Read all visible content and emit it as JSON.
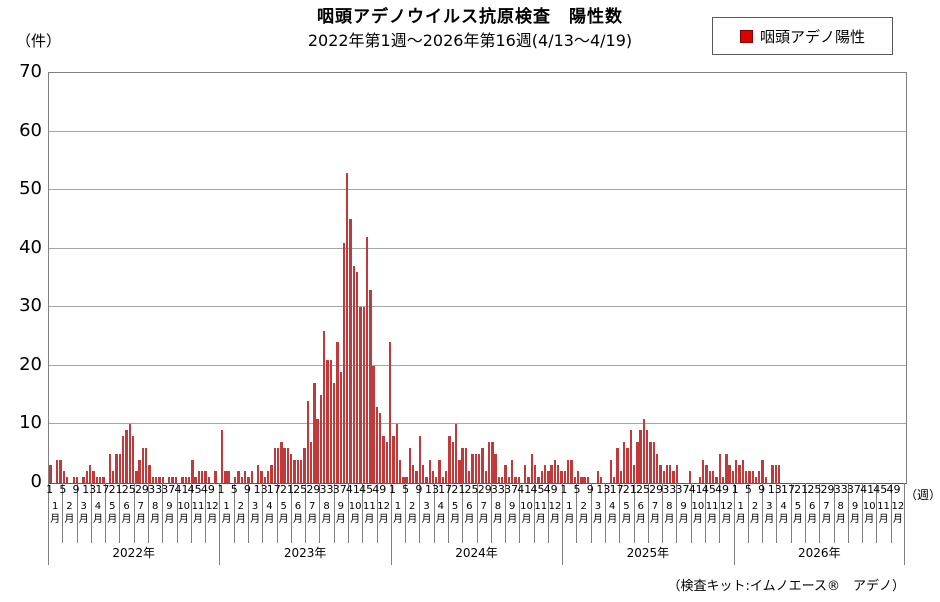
{
  "title": "咽頭アデノウイルス抗原検査　陽性数",
  "subtitle": "2022年第1週～2026年第16週(4/13～4/19)",
  "y_axis_unit_label": "（件）",
  "x_axis_unit_label": "（週）",
  "legend": {
    "label": "咽頭アデノ陽性",
    "marker_color": "#dd0000"
  },
  "footer_note": "（検査キット:イムノエース®　アデノ）",
  "colors": {
    "bar": "#c0393b",
    "gridline": "#a6a6a6",
    "frame": "#808080",
    "baseline": "#595959",
    "background": "#ffffff"
  },
  "chart_data": {
    "type": "bar",
    "title": "咽頭アデノウイルス抗原検査　陽性数",
    "subtitle": "2022年第1週～2026年第16週(4/13～4/19)",
    "ylabel": "件",
    "xlabel": "週",
    "ylim": [
      0,
      70
    ],
    "y_ticks": [
      0,
      10,
      20,
      30,
      40,
      50,
      60,
      70
    ],
    "grid": true,
    "legend_position": "top-right",
    "series_name": "咽頭アデノ陽性",
    "weeks_per_year_axis": 52,
    "week_ticks": [
      1,
      5,
      9,
      13,
      17,
      21,
      25,
      29,
      33,
      37,
      41,
      45,
      49
    ],
    "month_numbers": [
      "1",
      "2",
      "3",
      "4",
      "5",
      "6",
      "7",
      "8",
      "9",
      "10",
      "11",
      "12"
    ],
    "month_suffix": "月",
    "years": [
      {
        "year": "2022年",
        "values": [
          3,
          0,
          4,
          4,
          2,
          1,
          0,
          1,
          1,
          0,
          1,
          2,
          3,
          2,
          1,
          1,
          1,
          0,
          5,
          2,
          5,
          5,
          8,
          9,
          10,
          8,
          2,
          4,
          6,
          6,
          3,
          1,
          1,
          1,
          1,
          0,
          1,
          1,
          1,
          0,
          1,
          1,
          1,
          4,
          1,
          2,
          2,
          2,
          1,
          0,
          2,
          0
        ]
      },
      {
        "year": "2023年",
        "values": [
          9,
          2,
          2,
          0,
          1,
          2,
          1,
          2,
          1,
          2,
          0,
          3,
          2,
          1,
          2,
          3,
          6,
          6,
          7,
          6,
          6,
          5,
          4,
          4,
          4,
          6,
          14,
          7,
          17,
          11,
          15,
          26,
          21,
          21,
          17,
          24,
          19,
          41,
          53,
          45,
          37,
          36,
          30,
          30,
          42,
          33,
          20,
          13,
          12,
          8,
          7,
          24
        ]
      },
      {
        "year": "2024年",
        "values": [
          8,
          10,
          4,
          1,
          1,
          6,
          3,
          2,
          8,
          3,
          1,
          4,
          2,
          1,
          4,
          1,
          2,
          8,
          7,
          10,
          4,
          6,
          6,
          2,
          5,
          5,
          5,
          6,
          2,
          7,
          7,
          5,
          1,
          1,
          3,
          1,
          4,
          1,
          1,
          0,
          3,
          1,
          5,
          3,
          1,
          2,
          3,
          2,
          3,
          4,
          3,
          2
        ]
      },
      {
        "year": "2025年",
        "values": [
          2,
          4,
          4,
          1,
          2,
          1,
          1,
          1,
          0,
          0,
          2,
          1,
          0,
          0,
          4,
          1,
          6,
          2,
          7,
          6,
          9,
          3,
          7,
          9,
          11,
          9,
          7,
          7,
          5,
          3,
          2,
          3,
          3,
          2,
          3,
          0,
          0,
          0,
          2,
          0,
          0,
          1,
          4,
          3,
          2,
          2,
          1,
          5,
          1,
          5,
          3,
          2
        ]
      },
      {
        "year": "2026年",
        "values": [
          4,
          3,
          4,
          2,
          2,
          2,
          1,
          2,
          4,
          1,
          0,
          3,
          3,
          3,
          0,
          0
        ]
      }
    ]
  }
}
